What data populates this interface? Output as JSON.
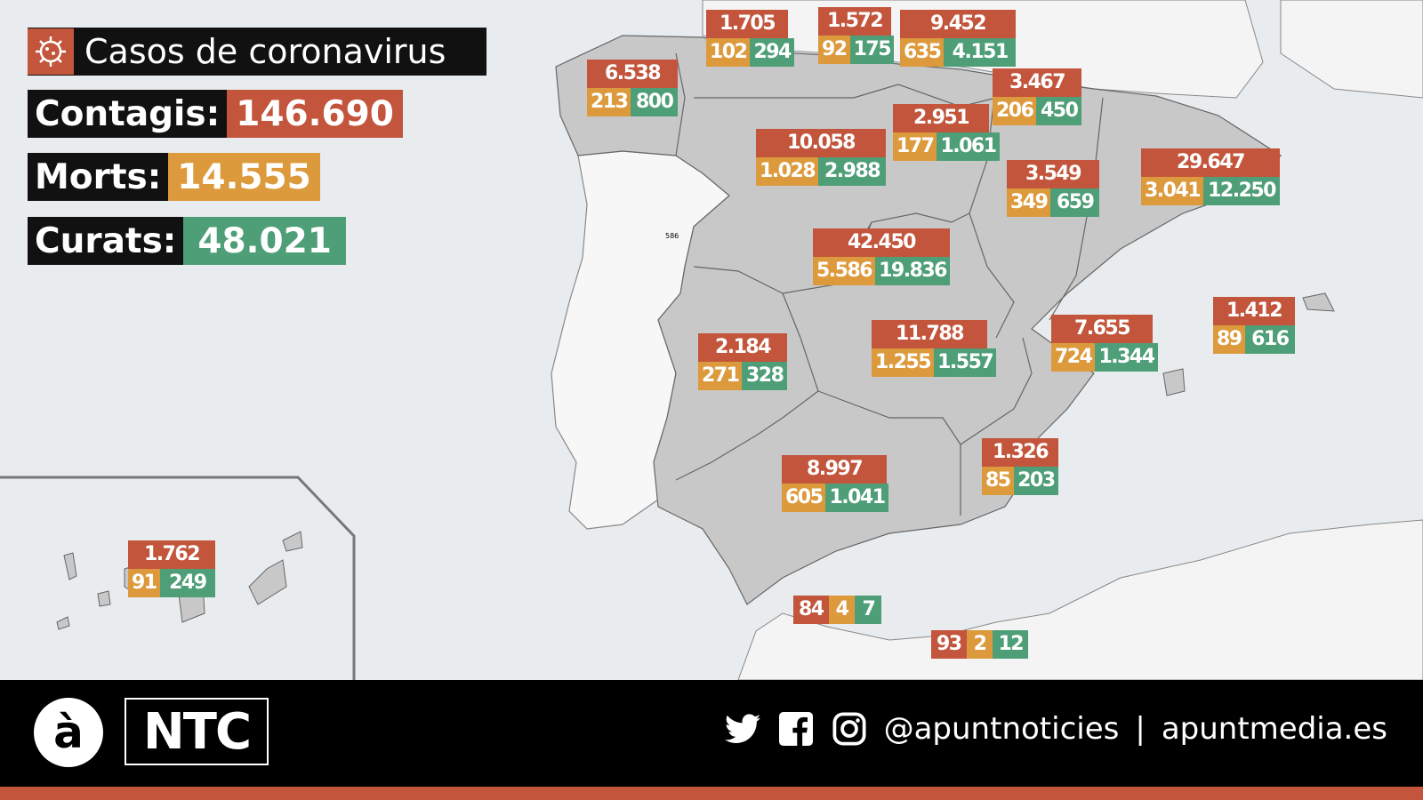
{
  "title": "Casos de coronavirus",
  "summary": {
    "contagis_label": "Contagis:",
    "contagis_value": "146.690",
    "morts_label": "Morts:",
    "morts_value": "14.555",
    "curats_label": "Curats:",
    "curats_value": "48.021"
  },
  "colors": {
    "cases": "#c2553b",
    "deaths": "#dd9a3c",
    "recovered": "#4e9e77",
    "land": "#c8c8c8",
    "sea": "#e8ecef"
  },
  "regions": [
    {
      "id": "cantabria",
      "cases": "1.705",
      "deaths": "102",
      "recovered": "294"
    },
    {
      "id": "navarra_la",
      "cases": "1.572",
      "deaths": "92",
      "recovered": "175"
    },
    {
      "id": "euskadi",
      "cases": "9.452",
      "deaths": "635",
      "recovered": "4.151"
    },
    {
      "id": "galicia",
      "cases": "6.538",
      "deaths": "213",
      "recovered": "800"
    },
    {
      "id": "navarra",
      "cases": "3.467",
      "deaths": "206",
      "recovered": "450"
    },
    {
      "id": "la_rioja",
      "cases": "2.951",
      "deaths": "177",
      "recovered": "1.061"
    },
    {
      "id": "castilla_leon",
      "cases": "10.058",
      "deaths": "1.028",
      "recovered": "2.988"
    },
    {
      "id": "aragon",
      "cases": "3.549",
      "deaths": "349",
      "recovered": "659"
    },
    {
      "id": "catalunya",
      "cases": "29.647",
      "deaths": "3.041",
      "recovered": "12.250"
    },
    {
      "id": "madrid",
      "cases": "42.450",
      "deaths": "5.586",
      "recovered": "19.836"
    },
    {
      "id": "balears",
      "cases": "1.412",
      "deaths": "89",
      "recovered": "616"
    },
    {
      "id": "valencia",
      "cases": "7.655",
      "deaths": "724",
      "recovered": "1.344"
    },
    {
      "id": "extremadura",
      "cases": "2.184",
      "deaths": "271",
      "recovered": "328"
    },
    {
      "id": "castilla_la_mancha",
      "cases": "11.788",
      "deaths": "1.255",
      "recovered": "1.557"
    },
    {
      "id": "murcia",
      "cases": "1.326",
      "deaths": "85",
      "recovered": "203"
    },
    {
      "id": "andalucia",
      "cases": "8.997",
      "deaths": "605",
      "recovered": "1.041"
    },
    {
      "id": "canarias",
      "cases": "1.762",
      "deaths": "91",
      "recovered": "249"
    }
  ],
  "ceuta": {
    "cases": "84",
    "deaths": "4",
    "recovered": "7"
  },
  "melilla": {
    "cases": "93",
    "deaths": "2",
    "recovered": "12"
  },
  "map_small_label": "586",
  "footer": {
    "logo_a": "à",
    "logo_ntc": "NTC",
    "handle": "@apuntnoticies",
    "separator": "|",
    "website": "apuntmedia.es",
    "icons": [
      "twitter-icon",
      "facebook-icon",
      "instagram-icon"
    ]
  }
}
